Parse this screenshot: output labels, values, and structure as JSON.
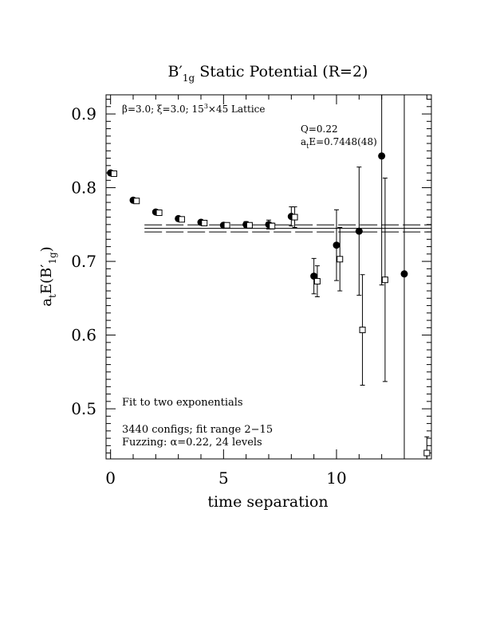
{
  "chart_data": {
    "type": "scatter",
    "title": {
      "prefix": "B",
      "prime": "′",
      "sub": "1g",
      "rest": " Static Potential (R=2)"
    },
    "xlabel": "time separation",
    "ylabel": {
      "a": "a",
      "t": "t",
      "mid": "E(B",
      "prime": "′",
      "sub": "1g",
      "end": ")"
    },
    "xlim": [
      -0.2,
      14.2
    ],
    "ylim": [
      0.432,
      0.926
    ],
    "x_ticks": [
      0,
      5,
      10
    ],
    "y_ticks": [
      0.5,
      0.6,
      0.7,
      0.8,
      0.9
    ],
    "y_tick_labels": [
      "0.5",
      "0.6",
      "0.7",
      "0.8",
      "0.9"
    ],
    "x_tick_labels": [
      "0",
      "5",
      "10"
    ],
    "lattice_label": {
      "beta": "β=3.0; ξ=3.0; 15",
      "exp": "3",
      "rest": "×45 Lattice"
    },
    "fit_info": {
      "q": "Q=0.22",
      "ae_prefix": "a",
      "ae_sub": "t",
      "ae_rest": "E=0.7448(48)"
    },
    "notes": {
      "fit": "Fit to two exponentials",
      "configs": "3440 configs; fit range 2−15",
      "fuzz": "Fuzzing: α=0.22, 24 levels"
    },
    "fit_lines": {
      "central": 0.7448,
      "upper": 0.7496,
      "lower": 0.74,
      "x_start": 1.5
    },
    "series": [
      {
        "marker": "filled-circle",
        "points": [
          {
            "x": 0,
            "y": 0.82,
            "err": 0.002
          },
          {
            "x": 1,
            "y": 0.783,
            "err": 0.002
          },
          {
            "x": 2,
            "y": 0.767,
            "err": 0.002
          },
          {
            "x": 3,
            "y": 0.758,
            "err": 0.002
          },
          {
            "x": 4,
            "y": 0.753,
            "err": 0.003
          },
          {
            "x": 5,
            "y": 0.749,
            "err": 0.003
          },
          {
            "x": 6,
            "y": 0.75,
            "err": 0.004
          },
          {
            "x": 7,
            "y": 0.75,
            "err": 0.006
          },
          {
            "x": 8,
            "y": 0.761,
            "err": 0.013
          },
          {
            "x": 9,
            "y": 0.68,
            "err": 0.024
          },
          {
            "x": 10,
            "y": 0.722,
            "err": 0.048
          },
          {
            "x": 11,
            "y": 0.741,
            "err": 0.087
          },
          {
            "x": 12,
            "y": 0.843,
            "err": 0.175
          },
          {
            "x": 13,
            "y": 0.683,
            "err": 0.3
          }
        ]
      },
      {
        "marker": "open-square",
        "points": [
          {
            "x": 0.15,
            "y": 0.819,
            "err": 0.002
          },
          {
            "x": 1.15,
            "y": 0.782,
            "err": 0.002
          },
          {
            "x": 2.15,
            "y": 0.766,
            "err": 0.002
          },
          {
            "x": 3.15,
            "y": 0.757,
            "err": 0.002
          },
          {
            "x": 4.15,
            "y": 0.752,
            "err": 0.002
          },
          {
            "x": 5.15,
            "y": 0.749,
            "err": 0.002
          },
          {
            "x": 6.15,
            "y": 0.749,
            "err": 0.002
          },
          {
            "x": 7.15,
            "y": 0.748,
            "err": 0.004
          },
          {
            "x": 8.15,
            "y": 0.76,
            "err": 0.014
          },
          {
            "x": 9.15,
            "y": 0.673,
            "err": 0.021
          },
          {
            "x": 10.15,
            "y": 0.703,
            "err": 0.043
          },
          {
            "x": 11.15,
            "y": 0.607,
            "err": 0.075
          },
          {
            "x": 12.15,
            "y": 0.675,
            "err": 0.138
          },
          {
            "x": 14.0,
            "y": 0.44,
            "err": 0.022
          }
        ]
      }
    ]
  }
}
